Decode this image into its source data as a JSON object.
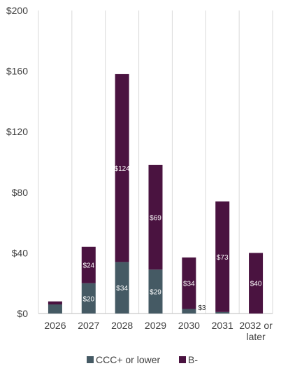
{
  "chart_data": {
    "type": "bar",
    "stacked": true,
    "categories": [
      "2026",
      "2027",
      "2028",
      "2029",
      "2030",
      "2031",
      "2032 or later"
    ],
    "series": [
      {
        "name": "CCC+ or lower",
        "color": "#455a64",
        "values": [
          6,
          20,
          34,
          29,
          3,
          1,
          0
        ],
        "labels": [
          "",
          "$20",
          "$34",
          "$29",
          "$3",
          "",
          ""
        ]
      },
      {
        "name": "B-",
        "color": "#4a1340",
        "values": [
          2,
          24,
          124,
          69,
          34,
          73,
          40
        ],
        "labels": [
          "",
          "$24",
          "$124",
          "$69",
          "$34",
          "$73",
          "$40"
        ]
      }
    ],
    "y_ticks": [
      "$0",
      "$40",
      "$80",
      "$120",
      "$160",
      "$200"
    ],
    "ylim": [
      0,
      200
    ],
    "grid": "vertical",
    "legend": "bottom"
  }
}
